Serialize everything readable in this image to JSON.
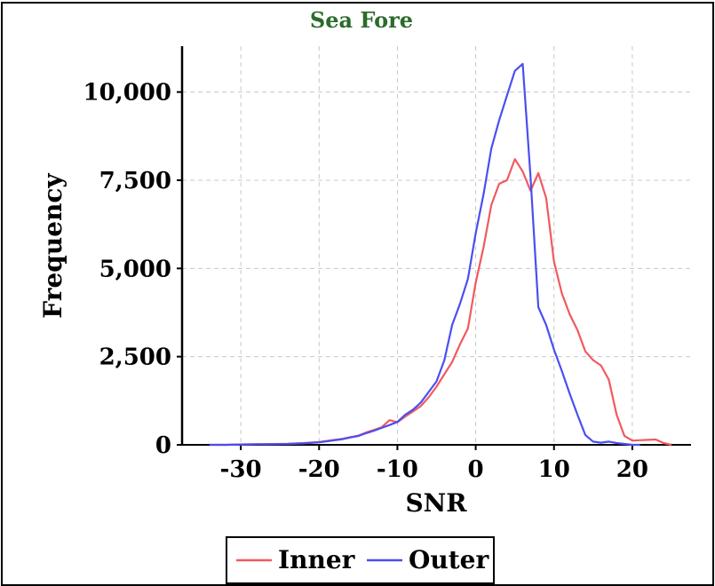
{
  "chart_data": {
    "type": "line",
    "title": "Sea Fore",
    "xlabel": "SNR",
    "ylabel": "Frequency",
    "xlim": [
      -37.5,
      27.5
    ],
    "ylim": [
      0,
      11300
    ],
    "x_ticks": [
      -30,
      -20,
      -10,
      0,
      10,
      20
    ],
    "y_ticks": [
      0,
      2500,
      5000,
      7500,
      10000
    ],
    "x_tick_labels": [
      "-30",
      "-20",
      "-10",
      "0",
      "10",
      "20"
    ],
    "y_tick_labels": [
      "0",
      "2,500",
      "5,000",
      "7,500",
      "10,000"
    ],
    "grid": true,
    "legend_position": "bottom-center",
    "series": [
      {
        "name": "Inner",
        "color": "#f05a5f",
        "x": [
          -34,
          -32,
          -30,
          -28,
          -26,
          -24,
          -22,
          -20,
          -19,
          -18,
          -17,
          -16,
          -15,
          -14,
          -13,
          -12,
          -11,
          -10,
          -9,
          -8,
          -7,
          -6,
          -5,
          -4,
          -3,
          -2,
          -1,
          0,
          1,
          2,
          3,
          4,
          5,
          6,
          7,
          8,
          9,
          10,
          11,
          12,
          13,
          14,
          15,
          16,
          17,
          18,
          19,
          20,
          21,
          22,
          23,
          24,
          25
        ],
        "y": [
          0,
          0,
          10,
          15,
          20,
          30,
          50,
          80,
          110,
          140,
          170,
          220,
          260,
          350,
          420,
          500,
          700,
          640,
          800,
          950,
          1100,
          1350,
          1650,
          2000,
          2350,
          2850,
          3300,
          4600,
          5600,
          6800,
          7400,
          7500,
          8100,
          7750,
          7200,
          7700,
          7000,
          5200,
          4300,
          3700,
          3250,
          2650,
          2400,
          2250,
          1850,
          850,
          250,
          120,
          130,
          140,
          150,
          50,
          0
        ]
      },
      {
        "name": "Outer",
        "color": "#4a4ff0",
        "x": [
          -34,
          -32,
          -30,
          -28,
          -26,
          -24,
          -22,
          -20,
          -19,
          -18,
          -17,
          -16,
          -15,
          -14,
          -13,
          -12,
          -11,
          -10,
          -9,
          -8,
          -7,
          -6,
          -5,
          -4,
          -3,
          -2,
          -1,
          0,
          1,
          2,
          3,
          4,
          5,
          6,
          7,
          8,
          9,
          10,
          11,
          12,
          13,
          14,
          15,
          16,
          17,
          18,
          19,
          20,
          21
        ],
        "y": [
          0,
          0,
          10,
          15,
          20,
          25,
          40,
          70,
          100,
          130,
          160,
          210,
          250,
          330,
          400,
          480,
          560,
          650,
          850,
          1000,
          1200,
          1500,
          1800,
          2400,
          3400,
          4000,
          4700,
          6000,
          7100,
          8400,
          9200,
          9900,
          10600,
          10800,
          7600,
          3900,
          3400,
          2700,
          2100,
          1450,
          850,
          280,
          90,
          60,
          90,
          50,
          25,
          0,
          0
        ]
      }
    ]
  }
}
